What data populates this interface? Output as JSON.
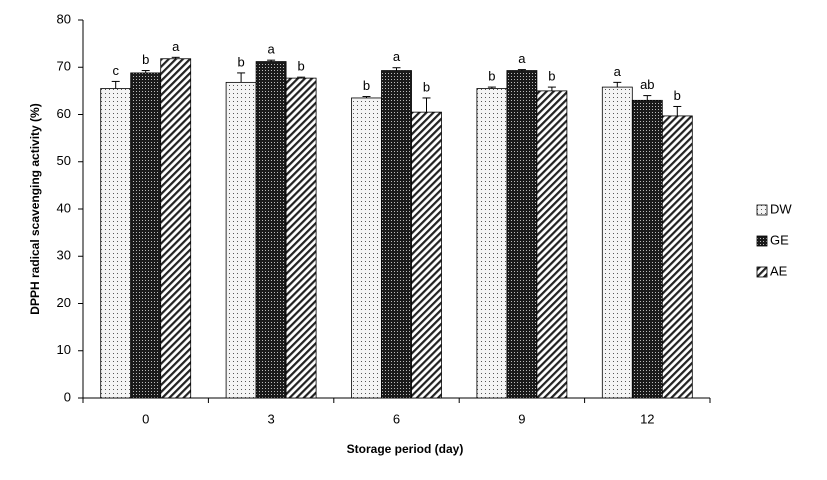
{
  "chart_data": {
    "type": "bar",
    "x_label": "Storage period (day)",
    "y_label": "DPPH radical scavenging activity (%)",
    "categories": [
      "0",
      "3",
      "6",
      "9",
      "12"
    ],
    "ylim": [
      0,
      80
    ],
    "yticks": [
      0,
      10,
      20,
      30,
      40,
      50,
      60,
      70,
      80
    ],
    "legend": "right",
    "series": [
      {
        "name": "DW",
        "color": "#f4f4f4",
        "pattern": "sparse-dots",
        "values": [
          65.5,
          66.8,
          63.5,
          65.5,
          65.8
        ],
        "errors": [
          1.5,
          2.0,
          0.3,
          0.3,
          1.0
        ],
        "significance": [
          "c",
          "b",
          "b",
          "b",
          "a"
        ]
      },
      {
        "name": "GE",
        "color": "#1a1a1a",
        "pattern": "dense-dots",
        "values": [
          68.8,
          71.2,
          69.3,
          69.3,
          63.0
        ],
        "errors": [
          0.5,
          0.3,
          0.6,
          0.2,
          1.0
        ],
        "significance": [
          "b",
          "a",
          "a",
          "a",
          "ab"
        ]
      },
      {
        "name": "AE",
        "color": "#222222",
        "pattern": "hatch",
        "values": [
          71.8,
          67.7,
          60.5,
          65.0,
          59.7
        ],
        "errors": [
          0.3,
          0.2,
          3.0,
          0.8,
          2.0
        ],
        "significance": [
          "a",
          "b",
          "b",
          "b",
          "b"
        ]
      }
    ]
  }
}
